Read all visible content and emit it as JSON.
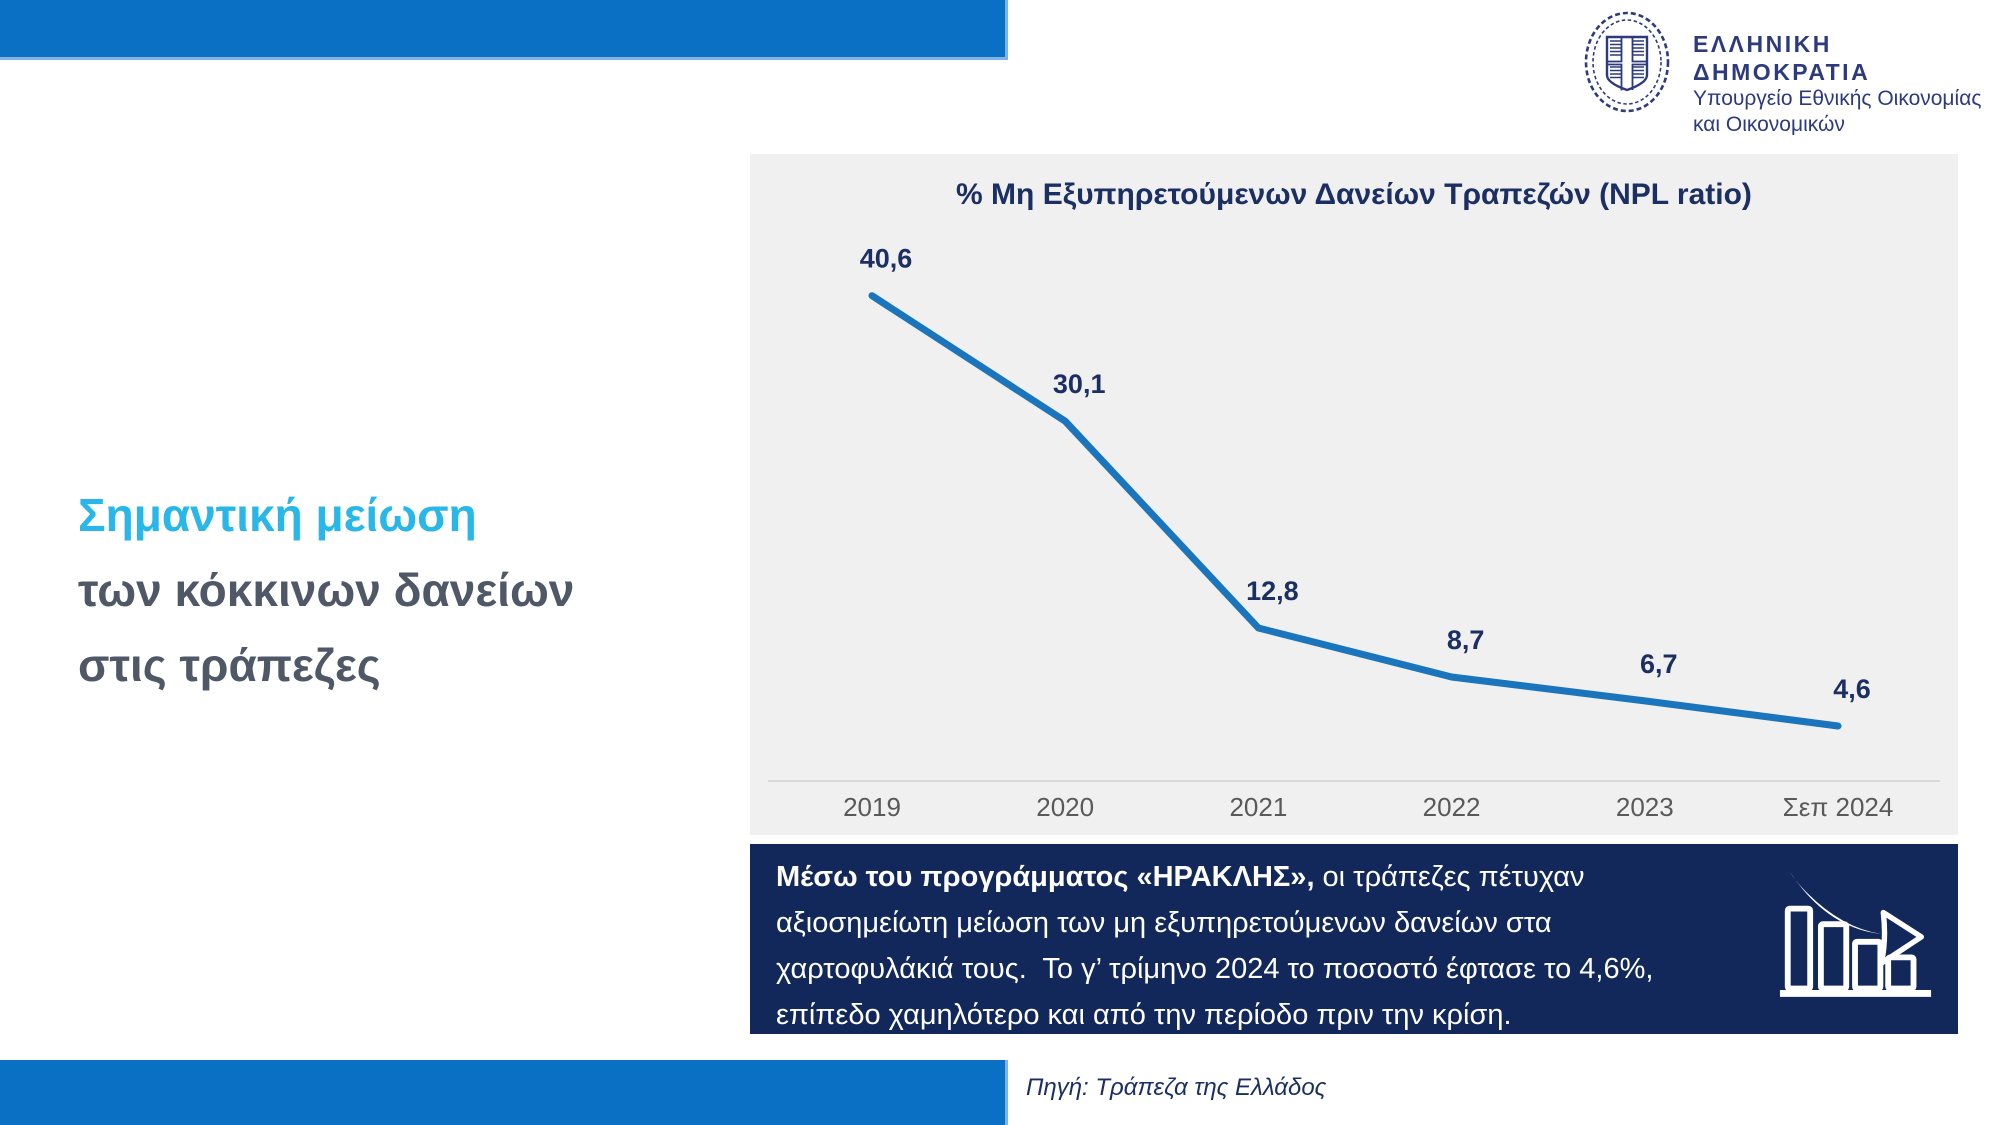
{
  "colors": {
    "accent_blue": "#0a70c4",
    "headline_cyan": "#29b7ea",
    "headline_slate": "#4f5866",
    "panel_gray": "#f0f0f1",
    "navy_box": "#12275a",
    "logo_navy": "#2d3b7d",
    "line_blue": "#1b75bc",
    "label_navy": "#1b2f63",
    "tick_gray": "#595959",
    "axis_gray": "#d9d9d9",
    "white": "#ffffff"
  },
  "header": {
    "logo": {
      "icon": "greek-coat-of-arms-emblem",
      "title": "ΕΛΛΗΝΙΚΗ ΔΗΜΟΚΡΑΤΙΑ",
      "subtitle_line1": "Υπουργείο Εθνικής Οικονομίας",
      "subtitle_line2": "και Οικονομικών"
    }
  },
  "headline": {
    "line1": "Σημαντική μείωση",
    "line2": "των κόκκινων δανείων",
    "line3": "στις τράπεζες"
  },
  "chart_data": {
    "type": "line",
    "title": "% Μη Εξυπηρετούμενων Δανείων Τραπεζών (NPL ratio)",
    "categories": [
      "2019",
      "2020",
      "2021",
      "2022",
      "2023",
      "Σεπ 2024"
    ],
    "values": [
      40.6,
      30.1,
      12.8,
      8.7,
      6.7,
      4.6
    ],
    "value_labels": [
      "40,6",
      "30,1",
      "12,8",
      "8,7",
      "6,7",
      "4,6"
    ],
    "series_name": "NPL ratio (%)",
    "ylim": [
      0,
      52
    ],
    "grid": false,
    "legend": "none",
    "line_color": "#1b75bc",
    "label_color": "#1b2f63",
    "axis_color": "#d9d9d9",
    "tick_color": "#595959"
  },
  "info_box": {
    "icon": "declining-bars-with-arrow",
    "bold_text": "Μέσω του προγράμματος «ΗΡΑΚΛΗΣ»,",
    "text": " οι τράπεζες πέτυχαν αξιοσημείωτη μείωση των μη εξυπηρετούμενων δανείων στα χαρτοφυλάκιά τους.  Το γ’ τρίμηνο 2024 το ποσοστό έφτασε το 4,6%, επίπεδο χαμηλότερο και από την περίοδο πριν την κρίση."
  },
  "footer": {
    "source": "Πηγή: Τράπεζα της Ελλάδος"
  }
}
